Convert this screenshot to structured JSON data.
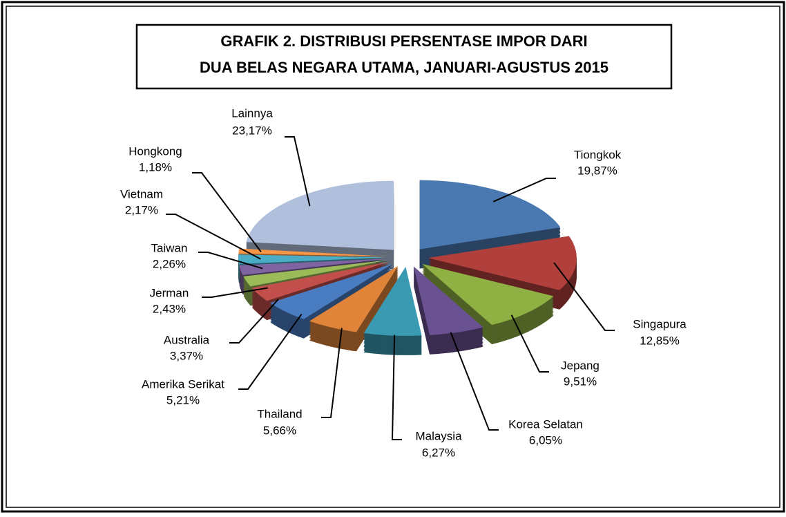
{
  "chart_data": {
    "type": "pie3d",
    "title": [
      "GRAFIK 2. DISTRIBUSI  PERSENTASE IMPOR DARI",
      "DUA BELAS NEGARA UTAMA, JANUARI-AGUSTUS 2015"
    ],
    "categories": [
      "Tiongkok",
      "Singapura",
      "Jepang",
      "Korea Selatan",
      "Malaysia",
      "Thailand",
      "Amerika Serikat",
      "Australia",
      "Jerman",
      "Taiwan",
      "Vietnam",
      "Hongkong",
      "Lainnya"
    ],
    "values": [
      19.87,
      12.85,
      9.51,
      6.05,
      6.27,
      5.66,
      5.21,
      3.37,
      2.43,
      2.26,
      2.17,
      1.18,
      23.17
    ],
    "value_labels": [
      "19,87%",
      "12,85%",
      "9,51%",
      "6,05%",
      "6,27%",
      "5,66%",
      "5,21%",
      "3,37%",
      "2,43%",
      "2,26%",
      "2,17%",
      "1,18%",
      "23,17%"
    ],
    "colors": [
      "#4a78b0",
      "#b1403c",
      "#8fb043",
      "#6a5192",
      "#3a9ab2",
      "#e0843a",
      "#4a7cc2",
      "#c24f4b",
      "#9bbb59",
      "#8064a2",
      "#4bacc6",
      "#f79646",
      "#b0c0dc"
    ]
  }
}
